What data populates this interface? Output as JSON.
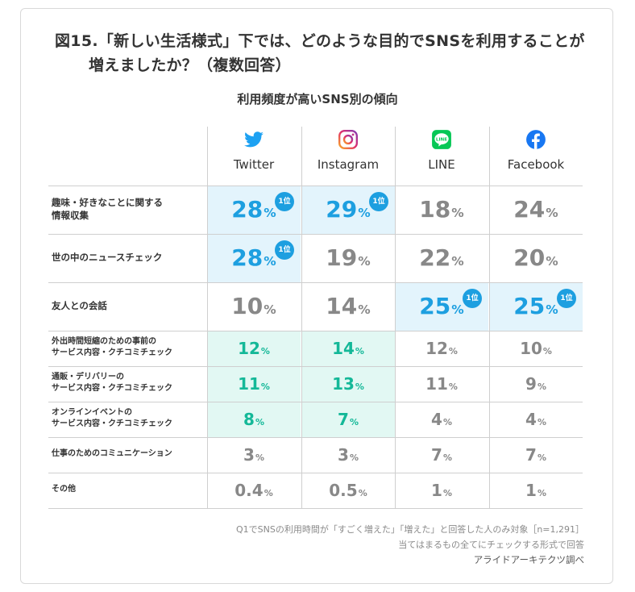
{
  "title_line1": "図15.「新しい生活様式」下では、どのような目的でSNSを利用することが",
  "title_line2": "増えましたか？（複数回答）",
  "chart_data": {
    "type": "table",
    "title": "利用頻度が高いSNS別の傾向",
    "columns": [
      {
        "label": "Twitter",
        "icon": "twitter-bird-icon",
        "color": "#1da1f2"
      },
      {
        "label": "Instagram",
        "icon": "instagram-icon",
        "color": "#e1306c"
      },
      {
        "label": "LINE",
        "icon": "line-icon",
        "color": "#06c755"
      },
      {
        "label": "Facebook",
        "icon": "facebook-icon",
        "color": "#1877f2"
      }
    ],
    "rows": [
      {
        "label": "趣味・好きなことに関する\n情報収集",
        "values": [
          28,
          29,
          18,
          24
        ],
        "highlight": [
          "blue",
          "blue",
          "",
          ""
        ],
        "rank1": [
          true,
          true,
          false,
          false
        ]
      },
      {
        "label": "世の中のニュースチェック",
        "values": [
          28,
          19,
          22,
          20
        ],
        "highlight": [
          "blue",
          "",
          "",
          ""
        ],
        "rank1": [
          true,
          false,
          false,
          false
        ]
      },
      {
        "label": "友人との会話",
        "values": [
          10,
          14,
          25,
          25
        ],
        "highlight": [
          "",
          "",
          "blue",
          "blue"
        ],
        "rank1": [
          false,
          false,
          true,
          true
        ]
      },
      {
        "label": "外出時間短縮のための事前の\nサービス内容・クチコミチェック",
        "values": [
          12,
          14,
          12,
          10
        ],
        "highlight": [
          "green",
          "green",
          "",
          ""
        ],
        "rank1": [
          false,
          false,
          false,
          false
        ]
      },
      {
        "label": "通販・デリバリーの\nサービス内容・クチコミチェック",
        "values": [
          11,
          13,
          11,
          9
        ],
        "highlight": [
          "green",
          "green",
          "",
          ""
        ],
        "rank1": [
          false,
          false,
          false,
          false
        ]
      },
      {
        "label": "オンラインイベントの\nサービス内容・クチコミチェック",
        "values": [
          8,
          7,
          4,
          4
        ],
        "highlight": [
          "green",
          "green",
          "",
          ""
        ],
        "rank1": [
          false,
          false,
          false,
          false
        ]
      },
      {
        "label": "仕事のためのコミュニケーション",
        "values": [
          3,
          3,
          7,
          7
        ],
        "highlight": [
          "",
          "",
          "",
          ""
        ],
        "rank1": [
          false,
          false,
          false,
          false
        ]
      },
      {
        "label": "その他",
        "values": [
          0.4,
          0.5,
          1,
          1
        ],
        "highlight": [
          "",
          "",
          "",
          ""
        ],
        "rank1": [
          false,
          false,
          false,
          false
        ]
      }
    ],
    "unit": "%",
    "rank1_label": "1位",
    "colors": {
      "rank1_text": "#1d9fe0",
      "green_text": "#14b898",
      "normal_text": "#888888",
      "blue_bg": "#e3f4fc",
      "green_bg": "#e2f8f3"
    }
  },
  "footnotes": [
    "Q1でSNSの利用時間が「すごく増えた」「増えた」と回答した人のみ対象［n=1,291］",
    "当てはまるもの全てにチェックする形式で回答",
    "アライドアーキテクツ調べ"
  ]
}
